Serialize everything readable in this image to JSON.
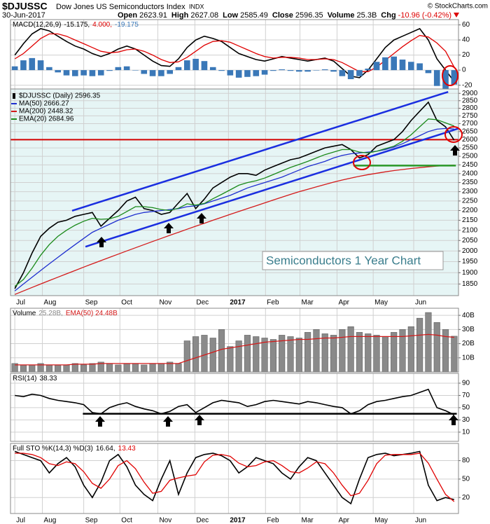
{
  "header": {
    "symbol": "$DJUSSC",
    "name": "Dow Jones US Semiconductors Index",
    "exchange": "INDX",
    "date": "30-Jun-2017",
    "credit": "© StockCharts.com",
    "stats": [
      {
        "label": "Open",
        "value": 2623.91
      },
      {
        "label": "High",
        "value": 2627.08
      },
      {
        "label": "Low",
        "value": 2585.49
      },
      {
        "label": "Close",
        "value": 2596.35
      },
      {
        "label": "Volume",
        "value": "25.3B"
      },
      {
        "label": "Chg",
        "value": "-10.96 (-0.42%)"
      }
    ]
  },
  "chart_data": [
    {
      "type": "line",
      "title": "MACD(12,26,9)",
      "xlim": [
        -0.5,
        51.5
      ],
      "ylim": [
        -25,
        67
      ],
      "yticks": [
        -20,
        0,
        20,
        40,
        60
      ],
      "grid": true,
      "series": [
        {
          "name": "-15.175,",
          "color": "#000000",
          "values": [
            20,
            35,
            48,
            55,
            52,
            45,
            38,
            32,
            28,
            22,
            18,
            22,
            28,
            32,
            28,
            20,
            12,
            6,
            5,
            15,
            30,
            40,
            45,
            42,
            38,
            30,
            22,
            18,
            14,
            12,
            15,
            18,
            16,
            14,
            12,
            14,
            16,
            12,
            2,
            -8,
            -10,
            0,
            15,
            30,
            40,
            45,
            50,
            55,
            40,
            15,
            0,
            -15.175
          ]
        },
        {
          "name": "4.000,",
          "color": "#e00000",
          "values": [
            15,
            22,
            32,
            42,
            48,
            48,
            45,
            40,
            35,
            30,
            25,
            23,
            24,
            27,
            28,
            25,
            20,
            14,
            10,
            11,
            17,
            25,
            33,
            38,
            39,
            37,
            32,
            27,
            22,
            18,
            16,
            17,
            17,
            16,
            14,
            14,
            15,
            14,
            10,
            4,
            -2,
            -2,
            4,
            13,
            22,
            31,
            39,
            46,
            44,
            36,
            25,
            4
          ]
        },
        {
          "name": "-19.175",
          "type": "bar",
          "color": "#3a78b8",
          "values": [
            5,
            13,
            16,
            13,
            4,
            -3,
            -7,
            -8,
            -7,
            -8,
            -7,
            -1,
            4,
            5,
            0,
            -5,
            -8,
            -8,
            -5,
            4,
            13,
            15,
            12,
            4,
            -1,
            -7,
            -10,
            -9,
            -8,
            -6,
            -1,
            1,
            -1,
            -2,
            -2,
            0,
            1,
            -2,
            -8,
            -12,
            -8,
            2,
            11,
            17,
            18,
            14,
            11,
            9,
            -4,
            -21,
            -25,
            -19.175
          ]
        }
      ]
    },
    {
      "type": "line",
      "log_scale": true,
      "xlim": [
        -0.5,
        51.5
      ],
      "ylim": [
        1800,
        2930
      ],
      "grid": true,
      "yticks": [
        1850,
        1900,
        1950,
        2000,
        2050,
        2100,
        2150,
        2200,
        2250,
        2300,
        2350,
        2400,
        2450,
        2500,
        2550,
        2600,
        2650,
        2700,
        2750,
        2800,
        2850,
        2900
      ],
      "xticks": [
        {
          "value": 0,
          "label": "Jul"
        },
        {
          "value": 3.2,
          "label": "Aug"
        },
        {
          "value": 8.0,
          "label": "Sep"
        },
        {
          "value": 12.2,
          "label": "Oct"
        },
        {
          "value": 16.6,
          "label": "Nov"
        },
        {
          "value": 20.9,
          "label": "Dec"
        },
        {
          "value": 24.8,
          "label": "2017"
        },
        {
          "value": 29.1,
          "label": "Feb"
        },
        {
          "value": 33.1,
          "label": "Mar"
        },
        {
          "value": 37.4,
          "label": "Apr"
        },
        {
          "value": 41.6,
          "label": "May"
        },
        {
          "value": 46.3,
          "label": "Jun"
        }
      ],
      "series": [
        {
          "name": "$DJUSSC (Daily) 2596.35",
          "color": "#000000",
          "values": [
            1830,
            1900,
            1990,
            2070,
            2110,
            2140,
            2150,
            2170,
            2180,
            2190,
            2120,
            2160,
            2200,
            2250,
            2270,
            2210,
            2200,
            2180,
            2190,
            2240,
            2290,
            2210,
            2260,
            2320,
            2350,
            2380,
            2400,
            2400,
            2390,
            2420,
            2440,
            2460,
            2480,
            2490,
            2510,
            2530,
            2550,
            2560,
            2570,
            2540,
            2490,
            2510,
            2560,
            2580,
            2600,
            2650,
            2720,
            2780,
            2840,
            2720,
            2680,
            2596.35
          ]
        },
        {
          "name": "MA(50) 2666.27",
          "color": "#1f2fcf",
          "values": [
            1820,
            1850,
            1880,
            1910,
            1940,
            1970,
            2000,
            2030,
            2060,
            2090,
            2110,
            2130,
            2150,
            2165,
            2180,
            2190,
            2195,
            2200,
            2205,
            2210,
            2220,
            2225,
            2235,
            2250,
            2265,
            2280,
            2300,
            2320,
            2335,
            2350,
            2365,
            2380,
            2400,
            2420,
            2440,
            2455,
            2470,
            2490,
            2505,
            2515,
            2520,
            2525,
            2530,
            2540,
            2555,
            2575,
            2600,
            2625,
            2650,
            2665,
            2670,
            2666.27
          ]
        },
        {
          "name": "MA(200) 2448.32",
          "color": "#d41a1a",
          "values": [
            1805,
            1820,
            1835,
            1850,
            1865,
            1880,
            1895,
            1910,
            1925,
            1940,
            1955,
            1970,
            1985,
            2000,
            2015,
            2030,
            2045,
            2060,
            2075,
            2090,
            2105,
            2120,
            2135,
            2150,
            2165,
            2180,
            2195,
            2210,
            2225,
            2240,
            2255,
            2270,
            2285,
            2300,
            2313,
            2326,
            2339,
            2352,
            2364,
            2375,
            2385,
            2394,
            2402,
            2410,
            2417,
            2423,
            2429,
            2434,
            2439,
            2443,
            2446,
            2448.32
          ]
        },
        {
          "name": "EMA(20) 2684.96",
          "color": "#1a8a1a",
          "values": [
            1840,
            1870,
            1920,
            1980,
            2030,
            2070,
            2100,
            2125,
            2145,
            2160,
            2155,
            2157,
            2170,
            2195,
            2220,
            2220,
            2215,
            2205,
            2200,
            2212,
            2235,
            2228,
            2237,
            2262,
            2285,
            2310,
            2335,
            2350,
            2360,
            2375,
            2395,
            2415,
            2435,
            2452,
            2470,
            2490,
            2510,
            2525,
            2540,
            2540,
            2525,
            2520,
            2530,
            2545,
            2560,
            2590,
            2630,
            2680,
            2730,
            2725,
            2705,
            2684.96
          ]
        }
      ],
      "hlines": [
        {
          "value": 2600,
          "color": "#d40000"
        }
      ],
      "trendlines": [
        {
          "x": [
            6.65,
            50.3
          ],
          "y": [
            2199,
            2910
          ],
          "color": "#1a2ee0"
        },
        {
          "x": [
            8.2,
            51.5
          ],
          "y": [
            2020,
            2669
          ],
          "color": "#1a2ee0"
        },
        {
          "x": [
            39.3,
            51.2
          ],
          "y": [
            2446,
            2446
          ],
          "color": "#2a9a2a"
        }
      ],
      "annotation": "Semiconductors 1 Year Chart"
    },
    {
      "type": "bar",
      "title": "Volume",
      "xlim": [
        -0.5,
        51.5
      ],
      "ylim": [
        0,
        45
      ],
      "grid": true,
      "yticks": [
        {
          "value": 10,
          "label": "10B"
        },
        {
          "value": 20,
          "label": "20B"
        },
        {
          "value": 30,
          "label": "30B"
        },
        {
          "value": 40,
          "label": "40B"
        }
      ],
      "series": [
        {
          "name": "25.28B,",
          "type": "bar",
          "color": "#8a8a8a",
          "values": [
            6,
            5,
            5,
            6,
            5,
            5,
            5,
            6,
            5,
            6,
            7,
            6,
            5,
            6,
            6,
            5,
            6,
            6,
            7,
            6,
            22,
            25,
            26,
            24,
            30,
            18,
            22,
            26,
            25,
            24,
            23,
            26,
            25,
            24,
            28,
            30,
            27,
            26,
            30,
            32,
            28,
            27,
            26,
            25,
            28,
            30,
            32,
            38,
            42,
            35,
            30,
            25.28
          ]
        },
        {
          "name": "EMA(50) 24.48B",
          "type": "line",
          "color": "#d41a1a",
          "values": [
            5,
            5,
            5,
            5,
            5,
            5,
            5,
            5.5,
            5.5,
            5.5,
            6,
            6,
            6,
            6,
            6,
            6,
            6,
            6,
            6,
            6,
            8,
            10,
            12,
            14,
            16,
            17,
            18,
            19,
            20,
            21,
            21.5,
            22,
            22.5,
            23,
            23,
            23.5,
            24,
            24,
            24.5,
            25,
            25,
            25,
            25,
            25,
            25,
            25,
            25.5,
            26,
            26.5,
            26,
            25,
            24.48
          ]
        }
      ]
    },
    {
      "type": "line",
      "title": "RSI(14)",
      "xlim": [
        -0.5,
        51.5
      ],
      "ylim": [
        -5,
        106
      ],
      "yticks": [
        10,
        30,
        50,
        70,
        90
      ],
      "grid": true,
      "series": [
        {
          "name": "38.33",
          "color": "#000000",
          "values": [
            70,
            68,
            72,
            70,
            65,
            62,
            60,
            58,
            55,
            42,
            40,
            50,
            55,
            58,
            52,
            48,
            45,
            40,
            44,
            52,
            55,
            42,
            50,
            58,
            62,
            60,
            58,
            52,
            55,
            60,
            62,
            60,
            58,
            56,
            60,
            58,
            55,
            52,
            50,
            40,
            45,
            55,
            60,
            62,
            65,
            68,
            70,
            75,
            80,
            50,
            45,
            38.33
          ]
        }
      ],
      "trendlines": [
        {
          "x": [
            7.9,
            51.3
          ],
          "y": [
            40,
            40
          ],
          "color": "#000000"
        }
      ]
    },
    {
      "type": "line",
      "title": "Full STO %K(14,3) %D(3)",
      "xlim": [
        -0.5,
        51.5
      ],
      "ylim": [
        -6,
        108
      ],
      "yticks": [
        20,
        50,
        80
      ],
      "grid": true,
      "xticks": [
        {
          "value": 0,
          "label": "Jul"
        },
        {
          "value": 3.2,
          "label": "Aug"
        },
        {
          "value": 8.0,
          "label": "Sep"
        },
        {
          "value": 12.2,
          "label": "Oct"
        },
        {
          "value": 16.6,
          "label": "Nov"
        },
        {
          "value": 20.9,
          "label": "Dec"
        },
        {
          "value": 24.8,
          "label": "2017"
        },
        {
          "value": 29.1,
          "label": "Feb"
        },
        {
          "value": 33.1,
          "label": "Mar"
        },
        {
          "value": 37.4,
          "label": "Apr"
        },
        {
          "value": 41.6,
          "label": "May"
        },
        {
          "value": 46.3,
          "label": "Jun"
        }
      ],
      "series": [
        {
          "name": "16.64,",
          "color": "#000000",
          "values": [
            95,
            90,
            85,
            80,
            60,
            75,
            85,
            70,
            40,
            20,
            45,
            80,
            90,
            70,
            40,
            25,
            15,
            50,
            80,
            25,
            60,
            85,
            90,
            92,
            88,
            80,
            60,
            70,
            85,
            80,
            75,
            60,
            50,
            70,
            85,
            80,
            60,
            40,
            20,
            10,
            50,
            85,
            90,
            92,
            88,
            90,
            92,
            95,
            40,
            15,
            20,
            16.64
          ]
        },
        {
          "name": "13.43",
          "color": "#e00000",
          "values": [
            92,
            92,
            90,
            85,
            75,
            72,
            78,
            75,
            62,
            43,
            35,
            50,
            72,
            80,
            67,
            45,
            27,
            30,
            48,
            52,
            55,
            57,
            78,
            89,
            90,
            87,
            76,
            70,
            72,
            78,
            80,
            72,
            62,
            60,
            68,
            78,
            75,
            60,
            40,
            23,
            27,
            48,
            75,
            89,
            90,
            90,
            90,
            92,
            76,
            50,
            25,
            13.43
          ]
        }
      ]
    }
  ]
}
